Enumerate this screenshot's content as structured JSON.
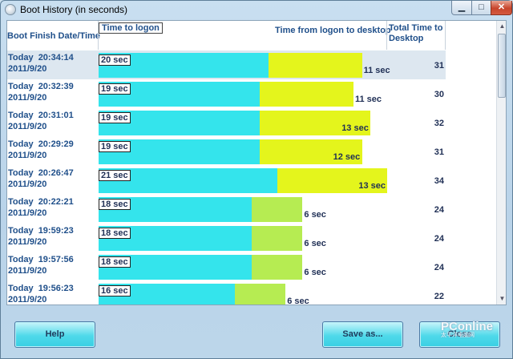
{
  "window": {
    "title": "Boot History (in seconds)",
    "min_glyph": "▁",
    "max_glyph": "□",
    "close_glyph": "✕"
  },
  "columns": {
    "date": "Boot Finish Date/Time",
    "logon": "Time to logon",
    "desktop": "Time from logon to desktop",
    "total": "Total Time to\nDesktop"
  },
  "rows": [
    {
      "date": "Today  20:34:14\n2011/9/20",
      "logon_label": "20 sec",
      "logon": 20,
      "desktop_label": "11 sec",
      "desktop": 11,
      "total": "31",
      "selected": true
    },
    {
      "date": "Today  20:32:39\n2011/9/20",
      "logon_label": "19 sec",
      "logon": 19,
      "desktop_label": "11 sec",
      "desktop": 11,
      "total": "30",
      "selected": false
    },
    {
      "date": "Today  20:31:01\n2011/9/20",
      "logon_label": "19 sec",
      "logon": 19,
      "desktop_label": "13 sec",
      "desktop": 13,
      "total": "32",
      "selected": false
    },
    {
      "date": "Today  20:29:29\n2011/9/20",
      "logon_label": "19 sec",
      "logon": 19,
      "desktop_label": "12 sec",
      "desktop": 12,
      "total": "31",
      "selected": false
    },
    {
      "date": "Today  20:26:47\n2011/9/20",
      "logon_label": "21 sec",
      "logon": 21,
      "desktop_label": "13 sec",
      "desktop": 13,
      "total": "34",
      "selected": false
    },
    {
      "date": "Today  20:22:21\n2011/9/20",
      "logon_label": "18 sec",
      "logon": 18,
      "desktop_label": "6 sec",
      "desktop": 6,
      "total": "24",
      "selected": false
    },
    {
      "date": "Today  19:59:23\n2011/9/20",
      "logon_label": "18 sec",
      "logon": 18,
      "desktop_label": "6 sec",
      "desktop": 6,
      "total": "24",
      "selected": false
    },
    {
      "date": "Today  19:57:56\n2011/9/20",
      "logon_label": "18 sec",
      "logon": 18,
      "desktop_label": "6 sec",
      "desktop": 6,
      "total": "24",
      "selected": false
    },
    {
      "date": "Today  19:56:23\n2011/9/20",
      "logon_label": "16 sec",
      "logon": 16,
      "desktop_label": "6 sec",
      "desktop": 6,
      "total": "22",
      "selected": false
    }
  ],
  "buttons": {
    "help": "Help",
    "save": "Save as...",
    "close": "Close"
  },
  "watermark": {
    "text": "PConline",
    "sub": "太平洋电脑网"
  },
  "colors": {
    "logon_bar": "#34e4ec",
    "desktop_long": "#e4f51c",
    "desktop_short": "#b6ec52",
    "header_text": "#1f4f8a",
    "selected_row": "#dde7f0"
  }
}
